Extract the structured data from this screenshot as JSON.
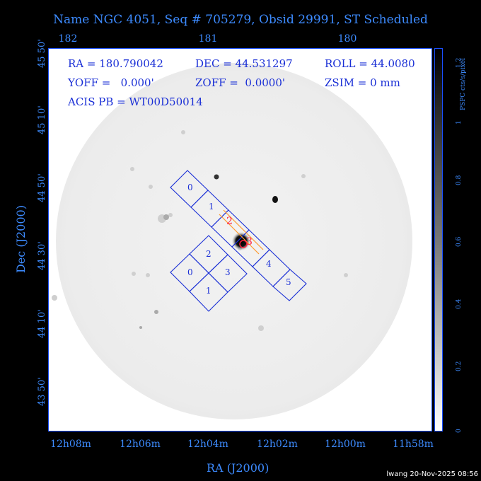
{
  "title": "Name NGC 4051, Seq # 705279, Obsid 29991, ST Scheduled",
  "top_ticks": [
    "182",
    "181",
    "180"
  ],
  "bottom_ticks": [
    "12h08m",
    "12h06m",
    "12h04m",
    "12h02m",
    "12h00m",
    "11h58m"
  ],
  "left_ticks": [
    "45 50'",
    "45 10'",
    "44 50'",
    "44 30'",
    "44 10'",
    "43 50'"
  ],
  "x_axis_label": "RA (J2000)",
  "y_axis_label": "Dec (J2000)",
  "info": {
    "ra": "RA = 180.790042",
    "dec": "DEC = 44.531297",
    "roll": "ROLL = 44.0080",
    "yoff": "YOFF =   0.000'",
    "zoff": "ZOFF =  0.0000'",
    "zsim": "ZSIM = 0 mm",
    "acis": "ACIS PB = WT00D50014"
  },
  "chips": {
    "array_s": [
      "0",
      "1",
      "2",
      "3",
      "4",
      "5"
    ],
    "array_i": [
      "0",
      "1",
      "2",
      "3"
    ]
  },
  "markers": [
    "2",
    "3"
  ],
  "colorbar": {
    "label": "PSPC cts/s/pixel",
    "ticks": [
      "1.2",
      "1",
      "0.8",
      "0.6",
      "0.4",
      "0.2",
      "0"
    ]
  },
  "footer": "lwang 20-Nov-2025 08:56",
  "colors": {
    "axis": "#3d8bff",
    "info": "#1a2fd6",
    "chip": "#1a2fd6",
    "marker": "#ff2040",
    "slit": "#ff9a30"
  }
}
